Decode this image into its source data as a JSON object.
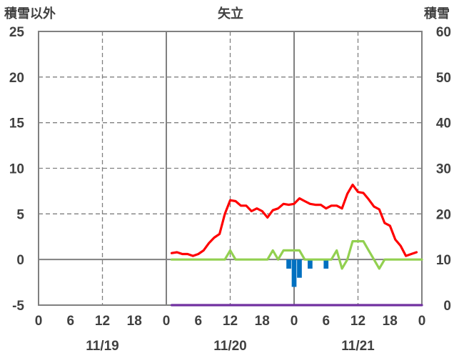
{
  "chart_data": {
    "type": "line",
    "title": "矢立",
    "y_left_label": "積雪以外",
    "y_right_label": "積雪",
    "y_left_ticks": [
      "25",
      "20",
      "15",
      "10",
      "5",
      "0",
      "-5"
    ],
    "y_right_ticks": [
      "60",
      "50",
      "40",
      "30",
      "20",
      "10",
      "0"
    ],
    "x_tick_labels": [
      "0",
      "6",
      "12",
      "18",
      "0",
      "6",
      "12",
      "18",
      "0",
      "6",
      "12",
      "18",
      "0"
    ],
    "date_labels": [
      "11/19",
      "11/20",
      "11/21"
    ],
    "ylim_left": [
      -5,
      25
    ],
    "ylim_right": [
      0,
      60
    ],
    "xlim_hours": [
      0,
      72
    ],
    "grid": true,
    "series": [
      {
        "color": "#ff0000",
        "axis": "left",
        "points": [
          [
            25,
            0.7
          ],
          [
            26,
            0.8
          ],
          [
            27,
            0.6
          ],
          [
            28,
            0.6
          ],
          [
            29,
            0.4
          ],
          [
            30,
            0.6
          ],
          [
            31,
            1.0
          ],
          [
            32,
            1.8
          ],
          [
            33,
            2.4
          ],
          [
            34,
            2.8
          ],
          [
            35,
            5.0
          ],
          [
            36,
            6.5
          ],
          [
            37,
            6.4
          ],
          [
            38,
            5.9
          ],
          [
            39,
            5.9
          ],
          [
            40,
            5.3
          ],
          [
            41,
            5.6
          ],
          [
            42,
            5.3
          ],
          [
            43,
            4.6
          ],
          [
            44,
            5.4
          ],
          [
            45,
            5.6
          ],
          [
            46,
            6.1
          ],
          [
            47,
            6.0
          ],
          [
            48,
            6.1
          ],
          [
            49,
            6.7
          ],
          [
            50,
            6.4
          ],
          [
            51,
            6.1
          ],
          [
            52,
            6.0
          ],
          [
            53,
            6.0
          ],
          [
            54,
            5.6
          ],
          [
            55,
            5.9
          ],
          [
            56,
            5.9
          ],
          [
            57,
            5.6
          ],
          [
            58,
            7.2
          ],
          [
            59,
            8.2
          ],
          [
            60,
            7.4
          ],
          [
            61,
            7.3
          ],
          [
            62,
            6.6
          ],
          [
            63,
            5.8
          ],
          [
            64,
            5.5
          ],
          [
            65,
            4.0
          ],
          [
            66,
            3.7
          ],
          [
            67,
            2.2
          ],
          [
            68,
            1.5
          ],
          [
            69,
            0.4
          ],
          [
            70,
            0.6
          ],
          [
            71,
            0.8
          ]
        ]
      },
      {
        "color": "#92d050",
        "axis": "left",
        "points": [
          [
            25,
            0
          ],
          [
            26,
            0
          ],
          [
            27,
            0
          ],
          [
            28,
            0
          ],
          [
            29,
            0
          ],
          [
            30,
            0
          ],
          [
            31,
            0
          ],
          [
            32,
            0
          ],
          [
            33,
            0
          ],
          [
            34,
            0
          ],
          [
            35,
            0
          ],
          [
            36,
            1
          ],
          [
            37,
            0
          ],
          [
            38,
            0
          ],
          [
            39,
            0
          ],
          [
            40,
            0
          ],
          [
            41,
            0
          ],
          [
            42,
            0
          ],
          [
            43,
            0
          ],
          [
            44,
            1
          ],
          [
            45,
            0
          ],
          [
            46,
            1
          ],
          [
            47,
            1
          ],
          [
            48,
            1
          ],
          [
            49,
            1
          ],
          [
            50,
            0
          ],
          [
            51,
            0
          ],
          [
            52,
            0
          ],
          [
            53,
            0
          ],
          [
            54,
            0
          ],
          [
            55,
            0
          ],
          [
            56,
            1
          ],
          [
            57,
            -1
          ],
          [
            58,
            0
          ],
          [
            59,
            2
          ],
          [
            60,
            2
          ],
          [
            61,
            2
          ],
          [
            62,
            1
          ],
          [
            63,
            0
          ],
          [
            64,
            -1
          ],
          [
            65,
            0
          ],
          [
            66,
            0
          ],
          [
            67,
            0
          ],
          [
            68,
            0
          ],
          [
            69,
            0
          ],
          [
            70,
            0
          ],
          [
            71,
            0
          ],
          [
            72,
            0
          ]
        ]
      },
      {
        "color": "#7030a0",
        "axis": "right",
        "points": [
          [
            25,
            0
          ],
          [
            72,
            0
          ]
        ]
      }
    ],
    "bars": {
      "color": "#0070c0",
      "axis": "left",
      "points": [
        [
          47,
          -1
        ],
        [
          48,
          -3
        ],
        [
          49,
          -2
        ],
        [
          51,
          -1
        ],
        [
          54,
          -1
        ]
      ]
    }
  }
}
